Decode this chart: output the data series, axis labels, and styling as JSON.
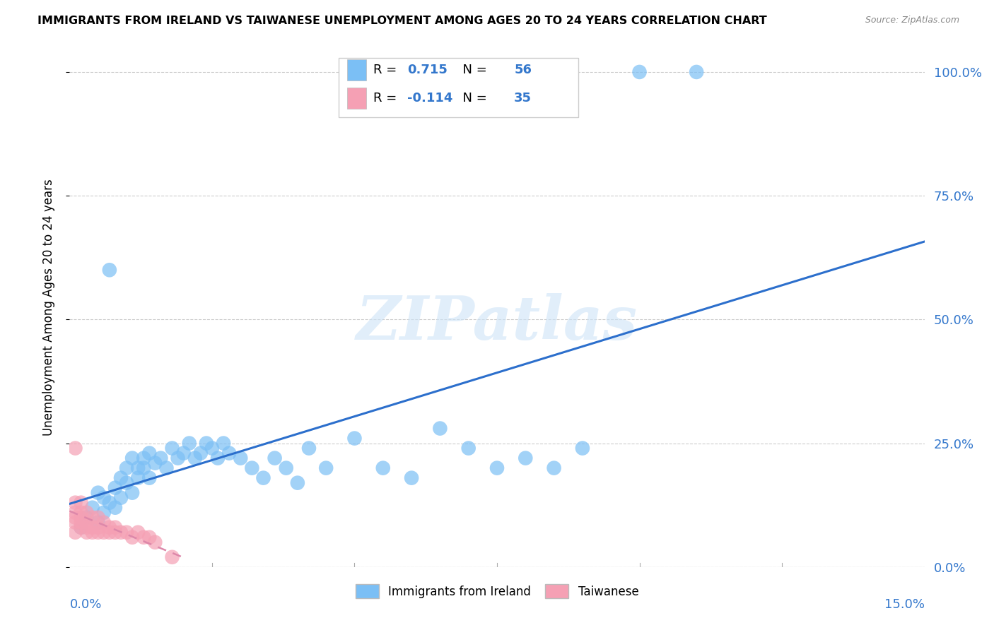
{
  "title": "IMMIGRANTS FROM IRELAND VS TAIWANESE UNEMPLOYMENT AMONG AGES 20 TO 24 YEARS CORRELATION CHART",
  "source": "Source: ZipAtlas.com",
  "ylabel": "Unemployment Among Ages 20 to 24 years",
  "xlim": [
    0.0,
    0.15
  ],
  "ylim": [
    0.0,
    1.05
  ],
  "ytick_values": [
    0.0,
    0.25,
    0.5,
    0.75,
    1.0
  ],
  "grid_color": "#cccccc",
  "background_color": "#ffffff",
  "watermark_text": "ZIPatlas",
  "blue_color": "#7bbff5",
  "pink_color": "#f5a0b4",
  "blue_line_color": "#2c6fcc",
  "pink_line_color": "#dd88aa",
  "R_blue": 0.715,
  "N_blue": 56,
  "R_pink": -0.114,
  "N_pink": 35,
  "legend_label_blue": "Immigrants from Ireland",
  "legend_label_pink": "Taiwanese",
  "ireland_x": [
    0.002,
    0.003,
    0.004,
    0.005,
    0.005,
    0.006,
    0.006,
    0.007,
    0.007,
    0.008,
    0.008,
    0.009,
    0.009,
    0.01,
    0.01,
    0.011,
    0.011,
    0.012,
    0.012,
    0.013,
    0.013,
    0.014,
    0.014,
    0.015,
    0.016,
    0.017,
    0.018,
    0.019,
    0.02,
    0.021,
    0.022,
    0.023,
    0.024,
    0.025,
    0.026,
    0.027,
    0.028,
    0.03,
    0.032,
    0.034,
    0.036,
    0.038,
    0.04,
    0.042,
    0.045,
    0.05,
    0.055,
    0.06,
    0.065,
    0.07,
    0.075,
    0.08,
    0.085,
    0.09,
    0.1,
    0.11
  ],
  "ireland_y": [
    0.08,
    0.1,
    0.12,
    0.09,
    0.15,
    0.11,
    0.14,
    0.13,
    0.6,
    0.12,
    0.16,
    0.14,
    0.18,
    0.17,
    0.2,
    0.15,
    0.22,
    0.18,
    0.2,
    0.22,
    0.2,
    0.18,
    0.23,
    0.21,
    0.22,
    0.2,
    0.24,
    0.22,
    0.23,
    0.25,
    0.22,
    0.23,
    0.25,
    0.24,
    0.22,
    0.25,
    0.23,
    0.22,
    0.2,
    0.18,
    0.22,
    0.2,
    0.17,
    0.24,
    0.2,
    0.26,
    0.2,
    0.18,
    0.28,
    0.24,
    0.2,
    0.22,
    0.2,
    0.24,
    1.0,
    1.0
  ],
  "taiwan_x": [
    0.001,
    0.001,
    0.001,
    0.001,
    0.001,
    0.001,
    0.002,
    0.002,
    0.002,
    0.002,
    0.002,
    0.003,
    0.003,
    0.003,
    0.003,
    0.004,
    0.004,
    0.004,
    0.005,
    0.005,
    0.005,
    0.006,
    0.006,
    0.007,
    0.007,
    0.008,
    0.008,
    0.009,
    0.01,
    0.011,
    0.012,
    0.013,
    0.014,
    0.015,
    0.018
  ],
  "taiwan_y": [
    0.07,
    0.09,
    0.1,
    0.11,
    0.13,
    0.24,
    0.08,
    0.09,
    0.1,
    0.11,
    0.13,
    0.07,
    0.08,
    0.09,
    0.11,
    0.07,
    0.08,
    0.1,
    0.07,
    0.08,
    0.1,
    0.07,
    0.09,
    0.07,
    0.08,
    0.07,
    0.08,
    0.07,
    0.07,
    0.06,
    0.07,
    0.06,
    0.06,
    0.05,
    0.02
  ]
}
